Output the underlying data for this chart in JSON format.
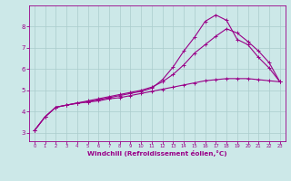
{
  "background_color": "#cce8e8",
  "grid_color": "#aacccc",
  "line_color": "#990088",
  "xlabel": "Windchill (Refroidissement éolien,°C)",
  "xlabel_color": "#990088",
  "tick_color": "#990088",
  "spine_color": "#990088",
  "xlim": [
    -0.5,
    23.5
  ],
  "ylim": [
    2.6,
    9.0
  ],
  "yticks": [
    3,
    4,
    5,
    6,
    7,
    8
  ],
  "xticks": [
    0,
    1,
    2,
    3,
    4,
    5,
    6,
    7,
    8,
    9,
    10,
    11,
    12,
    13,
    14,
    15,
    16,
    17,
    18,
    19,
    20,
    21,
    22,
    23
  ],
  "line1_x": [
    0,
    1,
    2,
    3,
    4,
    5,
    6,
    7,
    8,
    9,
    10,
    11,
    12,
    13,
    14,
    15,
    16,
    17,
    18,
    19,
    20,
    21,
    22,
    23
  ],
  "line1_y": [
    3.1,
    3.75,
    4.2,
    4.3,
    4.4,
    4.45,
    4.5,
    4.6,
    4.65,
    4.75,
    4.85,
    4.95,
    5.05,
    5.15,
    5.25,
    5.35,
    5.45,
    5.5,
    5.55,
    5.55,
    5.55,
    5.5,
    5.45,
    5.4
  ],
  "line2_x": [
    0,
    1,
    2,
    3,
    4,
    5,
    6,
    7,
    8,
    9,
    10,
    11,
    12,
    13,
    14,
    15,
    16,
    17,
    18,
    19,
    20,
    21,
    22,
    23
  ],
  "line2_y": [
    3.1,
    3.75,
    4.2,
    4.3,
    4.38,
    4.45,
    4.55,
    4.65,
    4.75,
    4.85,
    4.95,
    5.1,
    5.5,
    6.1,
    6.85,
    7.5,
    8.25,
    8.55,
    8.3,
    7.4,
    7.15,
    6.55,
    6.05,
    5.4
  ],
  "line3_x": [
    0,
    1,
    2,
    3,
    4,
    5,
    6,
    7,
    8,
    9,
    10,
    11,
    12,
    13,
    14,
    15,
    16,
    17,
    18,
    19,
    20,
    21,
    22,
    23
  ],
  "line3_y": [
    3.1,
    3.75,
    4.2,
    4.3,
    4.4,
    4.5,
    4.6,
    4.7,
    4.8,
    4.9,
    5.0,
    5.15,
    5.4,
    5.75,
    6.2,
    6.75,
    7.15,
    7.55,
    7.9,
    7.7,
    7.3,
    6.85,
    6.3,
    5.4
  ]
}
